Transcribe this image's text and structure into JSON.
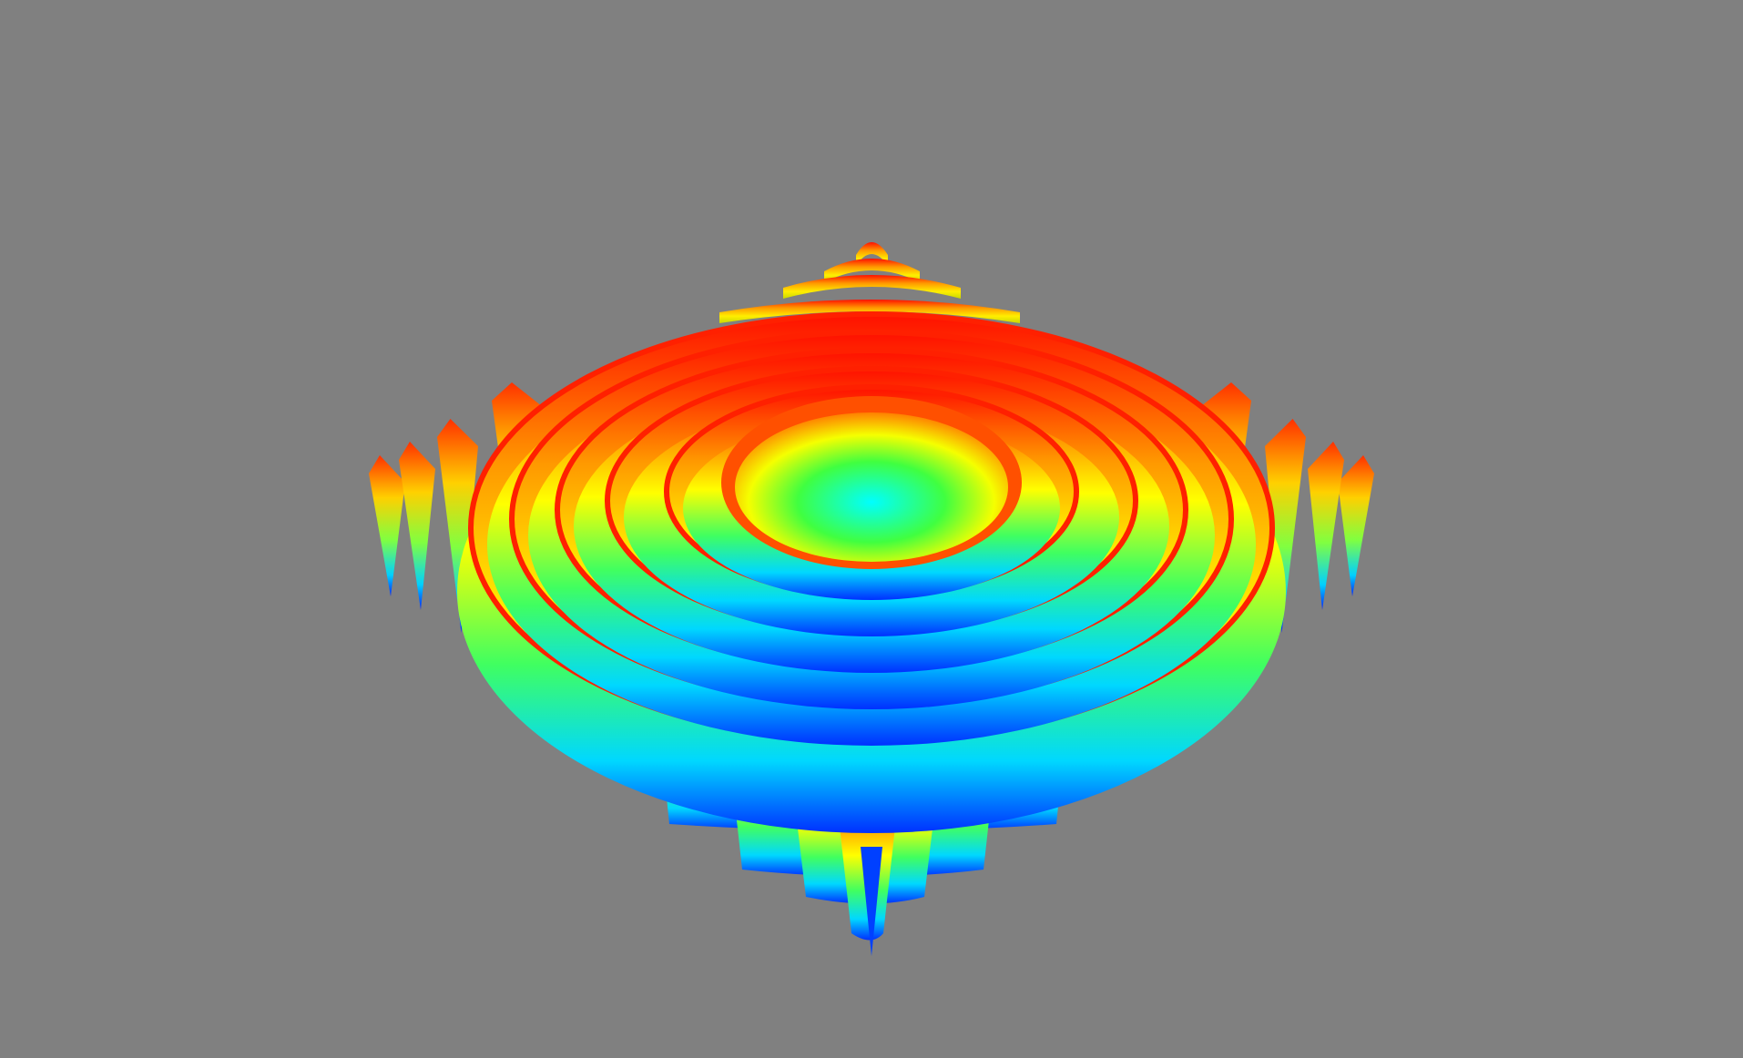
{
  "scene": {
    "background_color": "#808080",
    "surface_shape": "concentric ripple rings",
    "colormap": "jet",
    "colormap_stops": [
      "#0020ff",
      "#00e0ff",
      "#3cff50",
      "#ffff00",
      "#ff9a00",
      "#ff1800"
    ],
    "ring_count": 5
  }
}
